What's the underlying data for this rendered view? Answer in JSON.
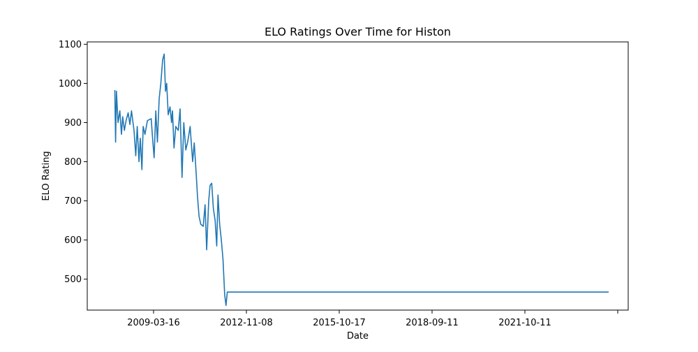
{
  "chart_data": {
    "type": "line",
    "title": "ELO Ratings Over Time for Histon",
    "xlabel": "Date",
    "ylabel": "ELO Rating",
    "x_ticks": [
      "2009-03-16",
      "2012-11-08",
      "2015-10-17",
      "2018-09-11",
      "2021-10-11",
      ""
    ],
    "y_ticks": [
      500,
      600,
      700,
      800,
      900,
      1000,
      1100
    ],
    "xlim": [
      "2006-07-01",
      "2024-06-25"
    ],
    "ylim": [
      421,
      1106
    ],
    "grid": false,
    "series": [
      {
        "color": "#1f77b4",
        "points": [
          [
            "2007-06-01",
            983
          ],
          [
            "2007-06-10",
            850
          ],
          [
            "2007-06-20",
            980
          ],
          [
            "2007-07-10",
            900
          ],
          [
            "2007-08-01",
            930
          ],
          [
            "2007-08-20",
            870
          ],
          [
            "2007-09-05",
            915
          ],
          [
            "2007-09-25",
            880
          ],
          [
            "2007-10-15",
            905
          ],
          [
            "2007-11-10",
            925
          ],
          [
            "2007-12-01",
            895
          ],
          [
            "2007-12-20",
            930
          ],
          [
            "2008-01-20",
            880
          ],
          [
            "2008-02-10",
            815
          ],
          [
            "2008-02-28",
            890
          ],
          [
            "2008-03-20",
            800
          ],
          [
            "2008-04-05",
            860
          ],
          [
            "2008-04-25",
            780
          ],
          [
            "2008-05-10",
            890
          ],
          [
            "2008-06-01",
            870
          ],
          [
            "2008-07-01",
            905
          ],
          [
            "2008-08-15",
            910
          ],
          [
            "2008-09-01",
            860
          ],
          [
            "2008-09-20",
            810
          ],
          [
            "2008-10-10",
            930
          ],
          [
            "2008-10-30",
            850
          ],
          [
            "2008-11-20",
            960
          ],
          [
            "2008-12-10",
            1000
          ],
          [
            "2009-01-01",
            1060
          ],
          [
            "2009-01-20",
            1075
          ],
          [
            "2009-02-05",
            980
          ],
          [
            "2009-02-20",
            1000
          ],
          [
            "2009-03-10",
            920
          ],
          [
            "2009-04-01",
            940
          ],
          [
            "2009-04-20",
            900
          ],
          [
            "2009-05-01",
            930
          ],
          [
            "2009-05-20",
            835
          ],
          [
            "2009-06-10",
            890
          ],
          [
            "2009-07-10",
            880
          ],
          [
            "2009-08-01",
            935
          ],
          [
            "2009-08-25",
            760
          ],
          [
            "2009-09-15",
            900
          ],
          [
            "2009-10-10",
            830
          ],
          [
            "2009-11-01",
            850
          ],
          [
            "2009-12-01",
            890
          ],
          [
            "2010-01-01",
            800
          ],
          [
            "2010-01-20",
            848
          ],
          [
            "2010-02-10",
            780
          ],
          [
            "2010-03-01",
            710
          ],
          [
            "2010-03-20",
            660
          ],
          [
            "2010-04-10",
            640
          ],
          [
            "2010-05-10",
            635
          ],
          [
            "2010-06-01",
            690
          ],
          [
            "2010-06-20",
            575
          ],
          [
            "2010-07-15",
            700
          ],
          [
            "2010-08-01",
            740
          ],
          [
            "2010-08-20",
            745
          ],
          [
            "2010-09-10",
            680
          ],
          [
            "2010-10-01",
            650
          ],
          [
            "2010-10-20",
            585
          ],
          [
            "2010-11-05",
            715
          ],
          [
            "2010-11-25",
            640
          ],
          [
            "2010-12-15",
            600
          ],
          [
            "2011-01-05",
            550
          ],
          [
            "2011-01-25",
            460
          ],
          [
            "2011-02-10",
            433
          ],
          [
            "2011-02-25",
            467
          ],
          [
            "2023-11-01",
            467
          ]
        ]
      }
    ]
  }
}
